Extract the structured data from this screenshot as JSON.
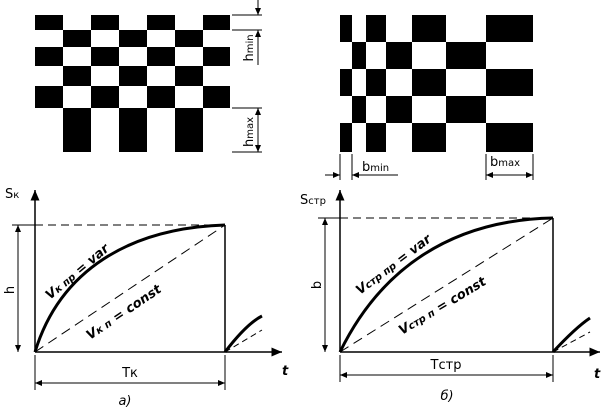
{
  "top_left": {
    "h_min": {
      "main": "h",
      "sub": "min"
    },
    "h_max": {
      "main": "h",
      "sub": "max"
    }
  },
  "top_right": {
    "b_min": {
      "main": "b",
      "sub": "min"
    },
    "b_max": {
      "main": "b",
      "sub": "max"
    }
  },
  "graph_a": {
    "y_label": {
      "main": "S",
      "sub": "к"
    },
    "height_label": "h",
    "curve_label": {
      "main": "V",
      "sub": "к пр",
      "rest": " = var"
    },
    "line_label": {
      "main": "V",
      "sub": "к п",
      "rest": " = const"
    },
    "period_label": "Tк",
    "x_label": "t",
    "caption": "а)"
  },
  "graph_b": {
    "y_label": {
      "main": "S",
      "sub": "стр"
    },
    "height_label": "b",
    "curve_label": {
      "main": "V",
      "sub": "стр пр",
      "rest": " = var"
    },
    "line_label": {
      "main": "V",
      "sub": "стр п",
      "rest": " = const"
    },
    "period_label": "Tстр",
    "x_label": "t",
    "caption": "б)"
  }
}
